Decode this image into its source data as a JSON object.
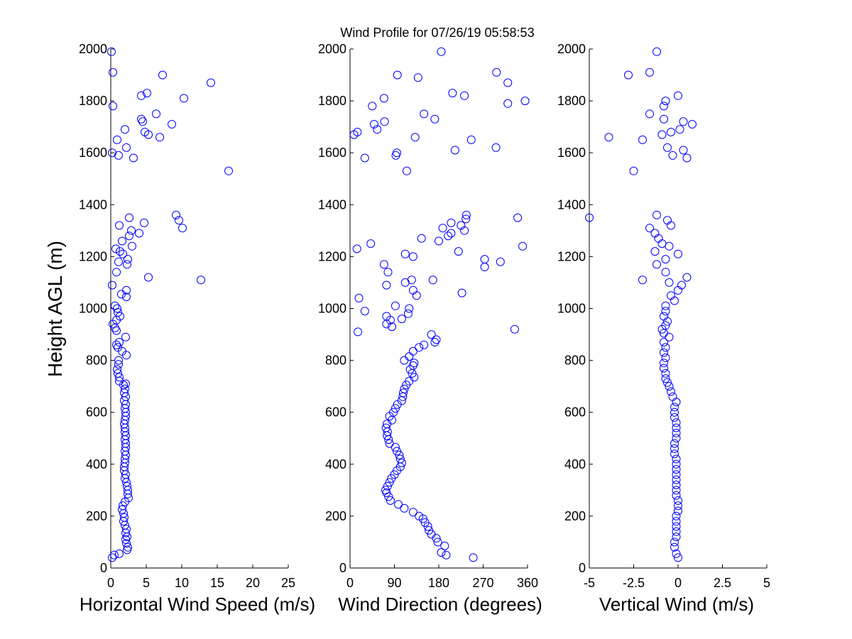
{
  "title": "Wind Profile for  07/26/19 05:58:53",
  "ylabel": "Height AGL (m)",
  "marker_color": "#0000ff",
  "chart_data": [
    {
      "type": "scatter",
      "xlabel": "Horizontal Wind Speed (m/s)",
      "ylabel": "Height AGL (m)",
      "xlim": [
        0,
        25
      ],
      "ylim": [
        0,
        2000
      ],
      "xticks": [
        "0",
        "5",
        "10",
        "15",
        "20",
        "25"
      ],
      "yticks": [
        "0",
        "200",
        "400",
        "600",
        "800",
        "1000",
        "1200",
        "1400",
        "1600",
        "1800",
        "2000"
      ],
      "grid": false,
      "points": [
        [
          0.2,
          40
        ],
        [
          0.5,
          50
        ],
        [
          1.2,
          55
        ],
        [
          2.3,
          70
        ],
        [
          2.4,
          80
        ],
        [
          2.2,
          95
        ],
        [
          2.1,
          110
        ],
        [
          2.3,
          120
        ],
        [
          2.1,
          135
        ],
        [
          2.2,
          150
        ],
        [
          2.0,
          165
        ],
        [
          1.8,
          180
        ],
        [
          1.9,
          195
        ],
        [
          1.8,
          210
        ],
        [
          1.6,
          225
        ],
        [
          1.7,
          240
        ],
        [
          2.0,
          255
        ],
        [
          2.5,
          270
        ],
        [
          2.4,
          285
        ],
        [
          2.4,
          300
        ],
        [
          2.3,
          315
        ],
        [
          2.2,
          330
        ],
        [
          2.0,
          345
        ],
        [
          2.1,
          360
        ],
        [
          1.9,
          375
        ],
        [
          1.9,
          390
        ],
        [
          2.0,
          405
        ],
        [
          2.0,
          420
        ],
        [
          2.1,
          435
        ],
        [
          2.0,
          450
        ],
        [
          2.1,
          465
        ],
        [
          2.1,
          480
        ],
        [
          2.0,
          495
        ],
        [
          2.1,
          510
        ],
        [
          2.0,
          525
        ],
        [
          2.0,
          540
        ],
        [
          1.9,
          555
        ],
        [
          2.0,
          570
        ],
        [
          2.1,
          585
        ],
        [
          2.1,
          600
        ],
        [
          2.0,
          615
        ],
        [
          2.1,
          630
        ],
        [
          1.9,
          645
        ],
        [
          2.1,
          660
        ],
        [
          1.9,
          675
        ],
        [
          2.0,
          690
        ],
        [
          1.8,
          705
        ],
        [
          2.1,
          710
        ],
        [
          1.2,
          720
        ],
        [
          1.2,
          735
        ],
        [
          1.0,
          750
        ],
        [
          0.9,
          765
        ],
        [
          1.1,
          785
        ],
        [
          1.1,
          800
        ],
        [
          2.2,
          820
        ],
        [
          1.6,
          835
        ],
        [
          1.0,
          850
        ],
        [
          0.8,
          860
        ],
        [
          1.2,
          870
        ],
        [
          2.1,
          890
        ],
        [
          0.8,
          915
        ],
        [
          0.6,
          925
        ],
        [
          0.3,
          940
        ],
        [
          0.8,
          955
        ],
        [
          1.3,
          970
        ],
        [
          1.0,
          985
        ],
        [
          0.9,
          1000
        ],
        [
          0.6,
          1010
        ],
        [
          2.2,
          1045
        ],
        [
          1.5,
          1055
        ],
        [
          2.2,
          1070
        ],
        [
          0.2,
          1090
        ],
        [
          12.7,
          1110
        ],
        [
          5.3,
          1120
        ],
        [
          0.8,
          1140
        ],
        [
          2.3,
          1170
        ],
        [
          1.1,
          1180
        ],
        [
          2.4,
          1190
        ],
        [
          1.7,
          1210
        ],
        [
          1.3,
          1220
        ],
        [
          0.7,
          1230
        ],
        [
          3.0,
          1240
        ],
        [
          1.6,
          1260
        ],
        [
          2.6,
          1280
        ],
        [
          4.0,
          1290
        ],
        [
          2.9,
          1300
        ],
        [
          10.1,
          1310
        ],
        [
          1.2,
          1320
        ],
        [
          4.7,
          1330
        ],
        [
          9.6,
          1340
        ],
        [
          2.6,
          1350
        ],
        [
          9.2,
          1360
        ],
        [
          16.6,
          1530
        ],
        [
          3.2,
          1580
        ],
        [
          1.1,
          1590
        ],
        [
          0.2,
          1600
        ],
        [
          2.2,
          1620
        ],
        [
          0.9,
          1650
        ],
        [
          6.9,
          1660
        ],
        [
          5.3,
          1670
        ],
        [
          4.8,
          1680
        ],
        [
          2.0,
          1690
        ],
        [
          8.6,
          1710
        ],
        [
          4.5,
          1720
        ],
        [
          4.3,
          1730
        ],
        [
          6.4,
          1750
        ],
        [
          0.3,
          1780
        ],
        [
          10.3,
          1810
        ],
        [
          4.3,
          1820
        ],
        [
          5.1,
          1830
        ],
        [
          14.1,
          1870
        ],
        [
          7.3,
          1900
        ],
        [
          0.3,
          1910
        ],
        [
          0.1,
          1990
        ]
      ]
    },
    {
      "type": "scatter",
      "xlabel": "Wind Direction (degrees)",
      "xlim": [
        0,
        360
      ],
      "ylim": [
        0,
        2000
      ],
      "xticks": [
        "0",
        "90",
        "180",
        "270",
        "360"
      ],
      "yticks": [
        "0",
        "200",
        "400",
        "600",
        "800",
        "1000",
        "1200",
        "1400",
        "1600",
        "1800",
        "2000"
      ],
      "grid": false,
      "points": [
        [
          250,
          40
        ],
        [
          195,
          50
        ],
        [
          185,
          60
        ],
        [
          192,
          85
        ],
        [
          178,
          100
        ],
        [
          175,
          115
        ],
        [
          165,
          130
        ],
        [
          160,
          145
        ],
        [
          158,
          160
        ],
        [
          152,
          175
        ],
        [
          148,
          190
        ],
        [
          140,
          200
        ],
        [
          128,
          215
        ],
        [
          110,
          230
        ],
        [
          98,
          245
        ],
        [
          82,
          260
        ],
        [
          78,
          275
        ],
        [
          74,
          290
        ],
        [
          72,
          300
        ],
        [
          76,
          315
        ],
        [
          80,
          330
        ],
        [
          84,
          345
        ],
        [
          90,
          360
        ],
        [
          95,
          375
        ],
        [
          102,
          390
        ],
        [
          105,
          405
        ],
        [
          102,
          420
        ],
        [
          100,
          435
        ],
        [
          95,
          450
        ],
        [
          92,
          465
        ],
        [
          80,
          480
        ],
        [
          78,
          495
        ],
        [
          75,
          510
        ],
        [
          76,
          525
        ],
        [
          73,
          540
        ],
        [
          75,
          555
        ],
        [
          85,
          570
        ],
        [
          80,
          585
        ],
        [
          88,
          600
        ],
        [
          92,
          615
        ],
        [
          96,
          630
        ],
        [
          105,
          645
        ],
        [
          107,
          660
        ],
        [
          108,
          675
        ],
        [
          110,
          690
        ],
        [
          114,
          705
        ],
        [
          120,
          720
        ],
        [
          130,
          735
        ],
        [
          126,
          750
        ],
        [
          122,
          765
        ],
        [
          128,
          780
        ],
        [
          130,
          790
        ],
        [
          110,
          800
        ],
        [
          120,
          815
        ],
        [
          128,
          835
        ],
        [
          140,
          850
        ],
        [
          150,
          860
        ],
        [
          172,
          870
        ],
        [
          175,
          880
        ],
        [
          165,
          900
        ],
        [
          16,
          910
        ],
        [
          85,
          930
        ],
        [
          74,
          940
        ],
        [
          82,
          955
        ],
        [
          105,
          960
        ],
        [
          74,
          970
        ],
        [
          118,
          980
        ],
        [
          30,
          990
        ],
        [
          120,
          1000
        ],
        [
          92,
          1010
        ],
        [
          18,
          1040
        ],
        [
          135,
          1050
        ],
        [
          227,
          1060
        ],
        [
          128,
          1070
        ],
        [
          112,
          1100
        ],
        [
          74,
          1090
        ],
        [
          125,
          1110
        ],
        [
          168,
          1110
        ],
        [
          77,
          1140
        ],
        [
          273,
          1160
        ],
        [
          69,
          1170
        ],
        [
          305,
          1180
        ],
        [
          273,
          1190
        ],
        [
          128,
          1200
        ],
        [
          112,
          1210
        ],
        [
          220,
          1220
        ],
        [
          14,
          1230
        ],
        [
          350,
          1240
        ],
        [
          42,
          1250
        ],
        [
          180,
          1260
        ],
        [
          145,
          1270
        ],
        [
          199,
          1280
        ],
        [
          205,
          1290
        ],
        [
          232,
          1300
        ],
        [
          188,
          1310
        ],
        [
          225,
          1320
        ],
        [
          205,
          1330
        ],
        [
          235,
          1345
        ],
        [
          236,
          1360
        ],
        [
          340,
          1350
        ],
        [
          334,
          920
        ],
        [
          115,
          1530
        ],
        [
          30,
          1580
        ],
        [
          93,
          1590
        ],
        [
          95,
          1600
        ],
        [
          213,
          1610
        ],
        [
          296,
          1620
        ],
        [
          132,
          1660
        ],
        [
          8,
          1670
        ],
        [
          15,
          1680
        ],
        [
          55,
          1690
        ],
        [
          49,
          1710
        ],
        [
          70,
          1720
        ],
        [
          172,
          1730
        ],
        [
          150,
          1750
        ],
        [
          320,
          1790
        ],
        [
          355,
          1800
        ],
        [
          69,
          1810
        ],
        [
          232,
          1820
        ],
        [
          208,
          1830
        ],
        [
          320,
          1870
        ],
        [
          45,
          1780
        ],
        [
          297,
          1910
        ],
        [
          96,
          1900
        ],
        [
          138,
          1890
        ],
        [
          246,
          1650
        ],
        [
          185,
          1990
        ]
      ]
    },
    {
      "type": "scatter",
      "xlabel": "Vertical Wind (m/s)",
      "xlim": [
        -5,
        5
      ],
      "ylim": [
        0,
        2000
      ],
      "xticks": [
        "-5",
        "-2.5",
        "0",
        "2.5",
        "5"
      ],
      "yticks": [
        "0",
        "200",
        "400",
        "600",
        "800",
        "1000",
        "1200",
        "1400",
        "1600",
        "1800",
        "2000"
      ],
      "grid": false,
      "points": [
        [
          0.0,
          40
        ],
        [
          -0.1,
          55
        ],
        [
          -0.2,
          80
        ],
        [
          -0.2,
          100
        ],
        [
          -0.1,
          120
        ],
        [
          -0.1,
          140
        ],
        [
          -0.1,
          160
        ],
        [
          -0.1,
          180
        ],
        [
          -0.1,
          200
        ],
        [
          0.0,
          220
        ],
        [
          0.0,
          240
        ],
        [
          0.0,
          260
        ],
        [
          -0.1,
          280
        ],
        [
          -0.1,
          300
        ],
        [
          -0.1,
          320
        ],
        [
          -0.1,
          340
        ],
        [
          -0.1,
          360
        ],
        [
          -0.1,
          380
        ],
        [
          -0.1,
          400
        ],
        [
          -0.1,
          420
        ],
        [
          -0.2,
          440
        ],
        [
          -0.2,
          460
        ],
        [
          -0.2,
          480
        ],
        [
          -0.1,
          500
        ],
        [
          -0.1,
          520
        ],
        [
          -0.1,
          540
        ],
        [
          -0.1,
          560
        ],
        [
          -0.2,
          580
        ],
        [
          -0.2,
          600
        ],
        [
          -0.2,
          620
        ],
        [
          -0.1,
          640
        ],
        [
          -0.3,
          660
        ],
        [
          -0.4,
          680
        ],
        [
          -0.5,
          700
        ],
        [
          -0.6,
          715
        ],
        [
          -0.7,
          730
        ],
        [
          -0.7,
          750
        ],
        [
          -0.8,
          770
        ],
        [
          -0.8,
          790
        ],
        [
          -0.7,
          810
        ],
        [
          -0.8,
          830
        ],
        [
          -0.7,
          850
        ],
        [
          -0.8,
          870
        ],
        [
          -0.5,
          890
        ],
        [
          -0.8,
          905
        ],
        [
          -0.9,
          920
        ],
        [
          -0.7,
          935
        ],
        [
          -0.6,
          950
        ],
        [
          -0.8,
          970
        ],
        [
          -0.7,
          990
        ],
        [
          -0.7,
          1010
        ],
        [
          -0.2,
          1030
        ],
        [
          -0.4,
          1050
        ],
        [
          0.0,
          1070
        ],
        [
          0.2,
          1090
        ],
        [
          -0.5,
          1100
        ],
        [
          -2.0,
          1110
        ],
        [
          0.5,
          1120
        ],
        [
          -0.7,
          1140
        ],
        [
          -1.2,
          1170
        ],
        [
          -0.7,
          1190
        ],
        [
          -1.3,
          1220
        ],
        [
          0.0,
          1210
        ],
        [
          -0.5,
          1240
        ],
        [
          -0.9,
          1250
        ],
        [
          -1.1,
          1270
        ],
        [
          -1.3,
          1290
        ],
        [
          -1.6,
          1310
        ],
        [
          -0.4,
          1320
        ],
        [
          -0.6,
          1340
        ],
        [
          -5.0,
          1350
        ],
        [
          -1.2,
          1360
        ],
        [
          -2.5,
          1530
        ],
        [
          -0.3,
          1590
        ],
        [
          0.5,
          1580
        ],
        [
          -0.6,
          1620
        ],
        [
          0.3,
          1610
        ],
        [
          -2.0,
          1650
        ],
        [
          -3.9,
          1660
        ],
        [
          -0.9,
          1670
        ],
        [
          -0.4,
          1680
        ],
        [
          0.1,
          1690
        ],
        [
          0.8,
          1710
        ],
        [
          0.3,
          1720
        ],
        [
          -0.8,
          1730
        ],
        [
          -1.6,
          1750
        ],
        [
          -0.8,
          1780
        ],
        [
          -0.7,
          1800
        ],
        [
          0.0,
          1820
        ],
        [
          -1.6,
          1910
        ],
        [
          -2.8,
          1900
        ],
        [
          -1.2,
          1990
        ]
      ]
    }
  ]
}
